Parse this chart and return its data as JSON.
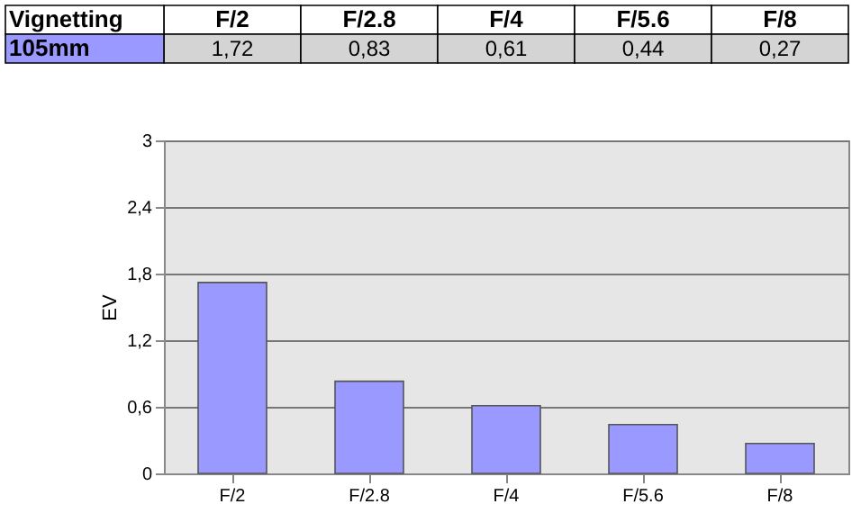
{
  "chart_data": {
    "type": "bar",
    "title": "Vignetting",
    "ylabel": "EV",
    "categories": [
      "F/2",
      "F/2.8",
      "F/4",
      "F/5.6",
      "F/8"
    ],
    "series": [
      {
        "name": "105mm",
        "color": "#9999ff",
        "values": [
          1.72,
          0.83,
          0.61,
          0.44,
          0.27
        ],
        "value_labels": [
          "1,72",
          "0,83",
          "0,61",
          "0,44",
          "0,27"
        ]
      }
    ],
    "ylim": [
      0,
      3
    ],
    "yticks": [
      0,
      {
        "value": 0.6,
        "label": "0,6"
      },
      {
        "value": 1.2,
        "label": "1,2"
      },
      {
        "value": 1.8,
        "label": "1,8"
      },
      {
        "value": 2.4,
        "label": "2,4"
      },
      3
    ],
    "grid": "y"
  }
}
